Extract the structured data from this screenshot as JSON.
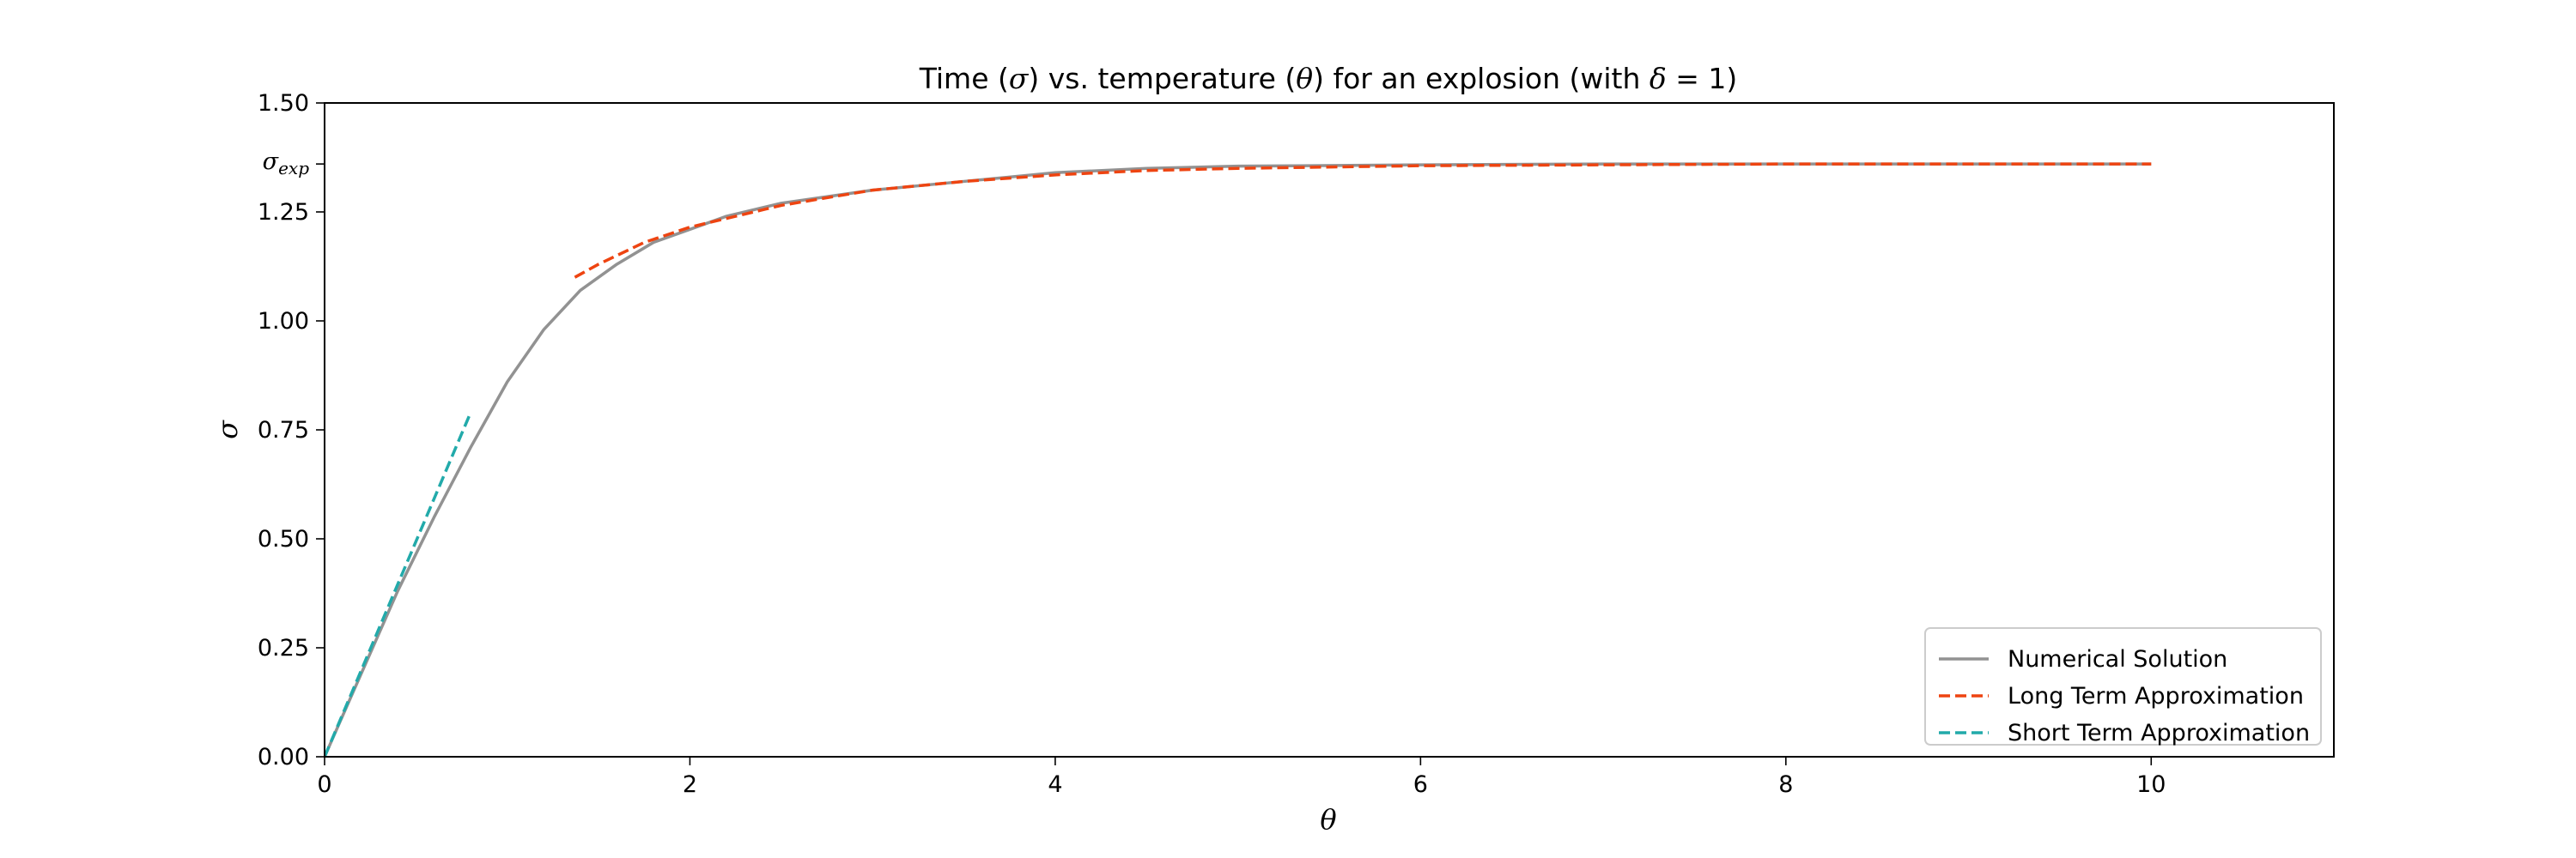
{
  "chart_data": {
    "type": "line",
    "title": {
      "part1": "Time (",
      "sym1": "σ",
      "part2": ") vs. temperature (",
      "sym2": "θ",
      "part3": ") for an explosion (with ",
      "sym3": "δ",
      "part4": " = 1)"
    },
    "xlabel": "θ",
    "ylabel": "σ",
    "xlim": [
      0,
      11
    ],
    "ylim": [
      0,
      1.5
    ],
    "x_ticks": [
      0,
      2,
      4,
      6,
      8,
      10
    ],
    "x_tick_labels": [
      "0",
      "2",
      "4",
      "6",
      "8",
      "10"
    ],
    "y_ticks": [
      0.0,
      0.25,
      0.5,
      0.75,
      1.0,
      1.25,
      1.5
    ],
    "y_tick_labels": [
      "0.00",
      "0.25",
      "0.50",
      "0.75",
      "1.00",
      "1.25",
      "1.50"
    ],
    "special_ytick": {
      "value": 1.36,
      "label_main": "σ",
      "label_sub": "exp"
    },
    "grid": false,
    "legend_position": "lower-right",
    "series": [
      {
        "name": "Numerical Solution",
        "color": "#929292",
        "style": "solid",
        "x": [
          0,
          0.2,
          0.4,
          0.6,
          0.8,
          1.0,
          1.2,
          1.4,
          1.6,
          1.8,
          2.0,
          2.2,
          2.5,
          3.0,
          3.5,
          4.0,
          4.5,
          5.0,
          6.0,
          7.0,
          8.0,
          9.0,
          10.0
        ],
        "y": [
          0,
          0.19,
          0.38,
          0.55,
          0.71,
          0.86,
          0.98,
          1.07,
          1.13,
          1.18,
          1.21,
          1.24,
          1.27,
          1.3,
          1.32,
          1.34,
          1.35,
          1.355,
          1.358,
          1.36,
          1.36,
          1.36,
          1.36
        ]
      },
      {
        "name": "Long Term Approximation",
        "color": "#ee4411",
        "style": "dashed",
        "x": [
          1.37,
          1.5,
          1.75,
          2.0,
          2.25,
          2.5,
          3.0,
          3.5,
          4.0,
          4.5,
          5.0,
          6.0,
          7.0,
          8.0,
          9.0,
          10.0
        ],
        "y": [
          1.1,
          1.13,
          1.18,
          1.215,
          1.24,
          1.265,
          1.3,
          1.32,
          1.335,
          1.345,
          1.35,
          1.356,
          1.358,
          1.36,
          1.36,
          1.36
        ]
      },
      {
        "name": "Short Term Approximation",
        "color": "#22aaaa",
        "style": "dashed",
        "x": [
          0,
          0.8
        ],
        "y": [
          0,
          0.79
        ]
      }
    ]
  }
}
